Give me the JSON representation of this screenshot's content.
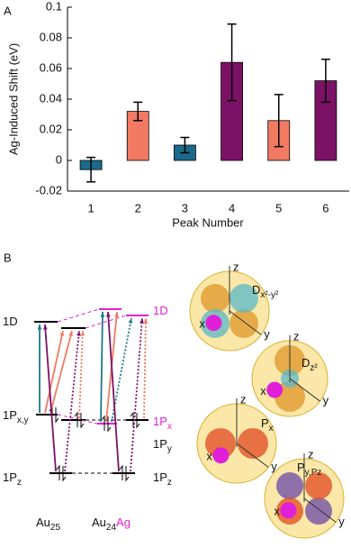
{
  "chart_data": {
    "type": "bar",
    "panel_label": "A",
    "x_label": "Peak Number",
    "y_label": "Ag-Induced Shift (eV)",
    "categories": [
      "1",
      "2",
      "3",
      "4",
      "5",
      "6"
    ],
    "values": [
      -0.006,
      0.032,
      0.01,
      0.064,
      0.026,
      0.052
    ],
    "errors": [
      0.008,
      0.006,
      0.005,
      0.025,
      0.017,
      0.014
    ],
    "colors": [
      "#1b6a8c",
      "#f27a63",
      "#1b6a8c",
      "#7b1266",
      "#f27a63",
      "#7b1266"
    ],
    "ylim": [
      -0.02,
      0.1
    ],
    "yticks": [
      -0.02,
      0,
      0.02,
      0.04,
      0.06,
      0.08,
      0.1
    ]
  },
  "diagram": {
    "panel_label": "B",
    "left_levels": [
      {
        "main": "1D"
      },
      {
        "main": "1P",
        "sub": "x,y"
      },
      {
        "main": "1P",
        "sub": "z"
      }
    ],
    "right_levels": [
      {
        "main": "1D",
        "color": "#e020d8"
      },
      {
        "main": "1P",
        "sub": "x",
        "color": "#e020d8"
      },
      {
        "main": "1P",
        "sub": "y"
      },
      {
        "main": "1P",
        "sub": "z"
      }
    ],
    "clusters": [
      {
        "main": "Au",
        "sub": "25"
      },
      {
        "main": "Au",
        "sub": "24",
        "suffix": "Ag",
        "suffix_color": "#e020d8"
      }
    ],
    "orbitals": [
      {
        "main": "D",
        "sub": "x²-y²"
      },
      {
        "main": "D",
        "sub": "z²"
      },
      {
        "main": "P",
        "sub": "x"
      },
      {
        "main": "P",
        "sub": "y,Pz"
      }
    ],
    "axis_letters": {
      "x": "x",
      "y": "y",
      "z": "z"
    }
  }
}
